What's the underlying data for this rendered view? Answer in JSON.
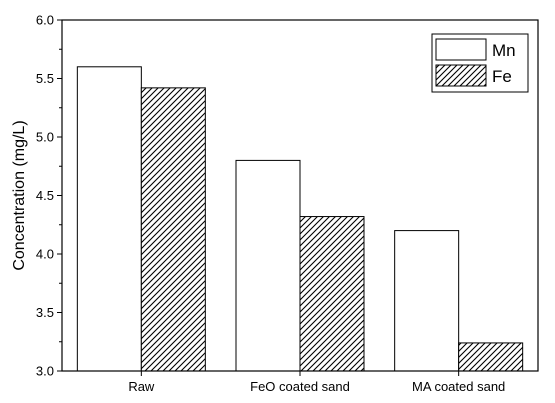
{
  "chart_data": {
    "type": "bar",
    "categories": [
      "Raw",
      "FeO coated sand",
      "MA coated sand"
    ],
    "series": [
      {
        "name": "Mn",
        "values": [
          5.6,
          4.8,
          4.2
        ],
        "fill": "none"
      },
      {
        "name": "Fe",
        "values": [
          5.42,
          4.32,
          3.24
        ],
        "fill": "hatch"
      }
    ],
    "xlabel": "",
    "ylabel": "Concentration (mg/L)",
    "ylim": [
      3.0,
      6.0
    ],
    "yticks": [
      "3.0",
      "3.5",
      "4.0",
      "4.5",
      "5.0",
      "5.5",
      "6.0"
    ],
    "legend_position": "top-right",
    "grid": false,
    "colors": {
      "stroke": "#000000",
      "background": "#ffffff"
    }
  }
}
